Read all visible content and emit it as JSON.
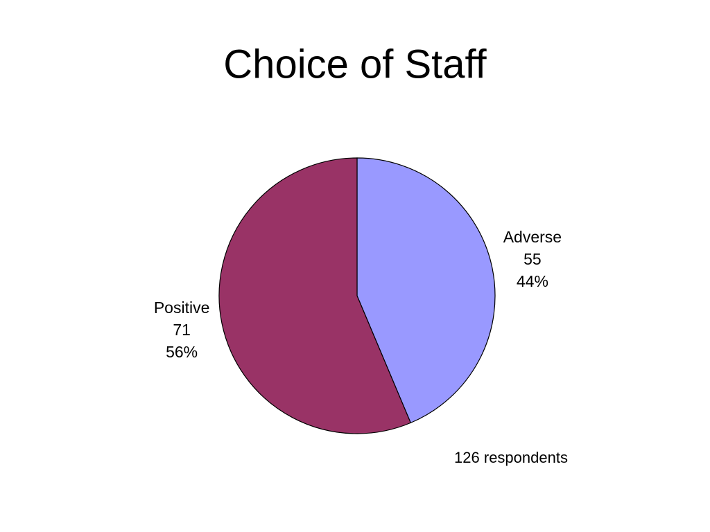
{
  "chart_data": {
    "type": "pie",
    "title": "Choice of Staff",
    "categories": [
      "Adverse",
      "Positive"
    ],
    "values": [
      55,
      71
    ],
    "percent_labels": [
      "44%",
      "56%"
    ],
    "colors": [
      "#9999ff",
      "#993366"
    ],
    "annotation": "126 respondents"
  }
}
